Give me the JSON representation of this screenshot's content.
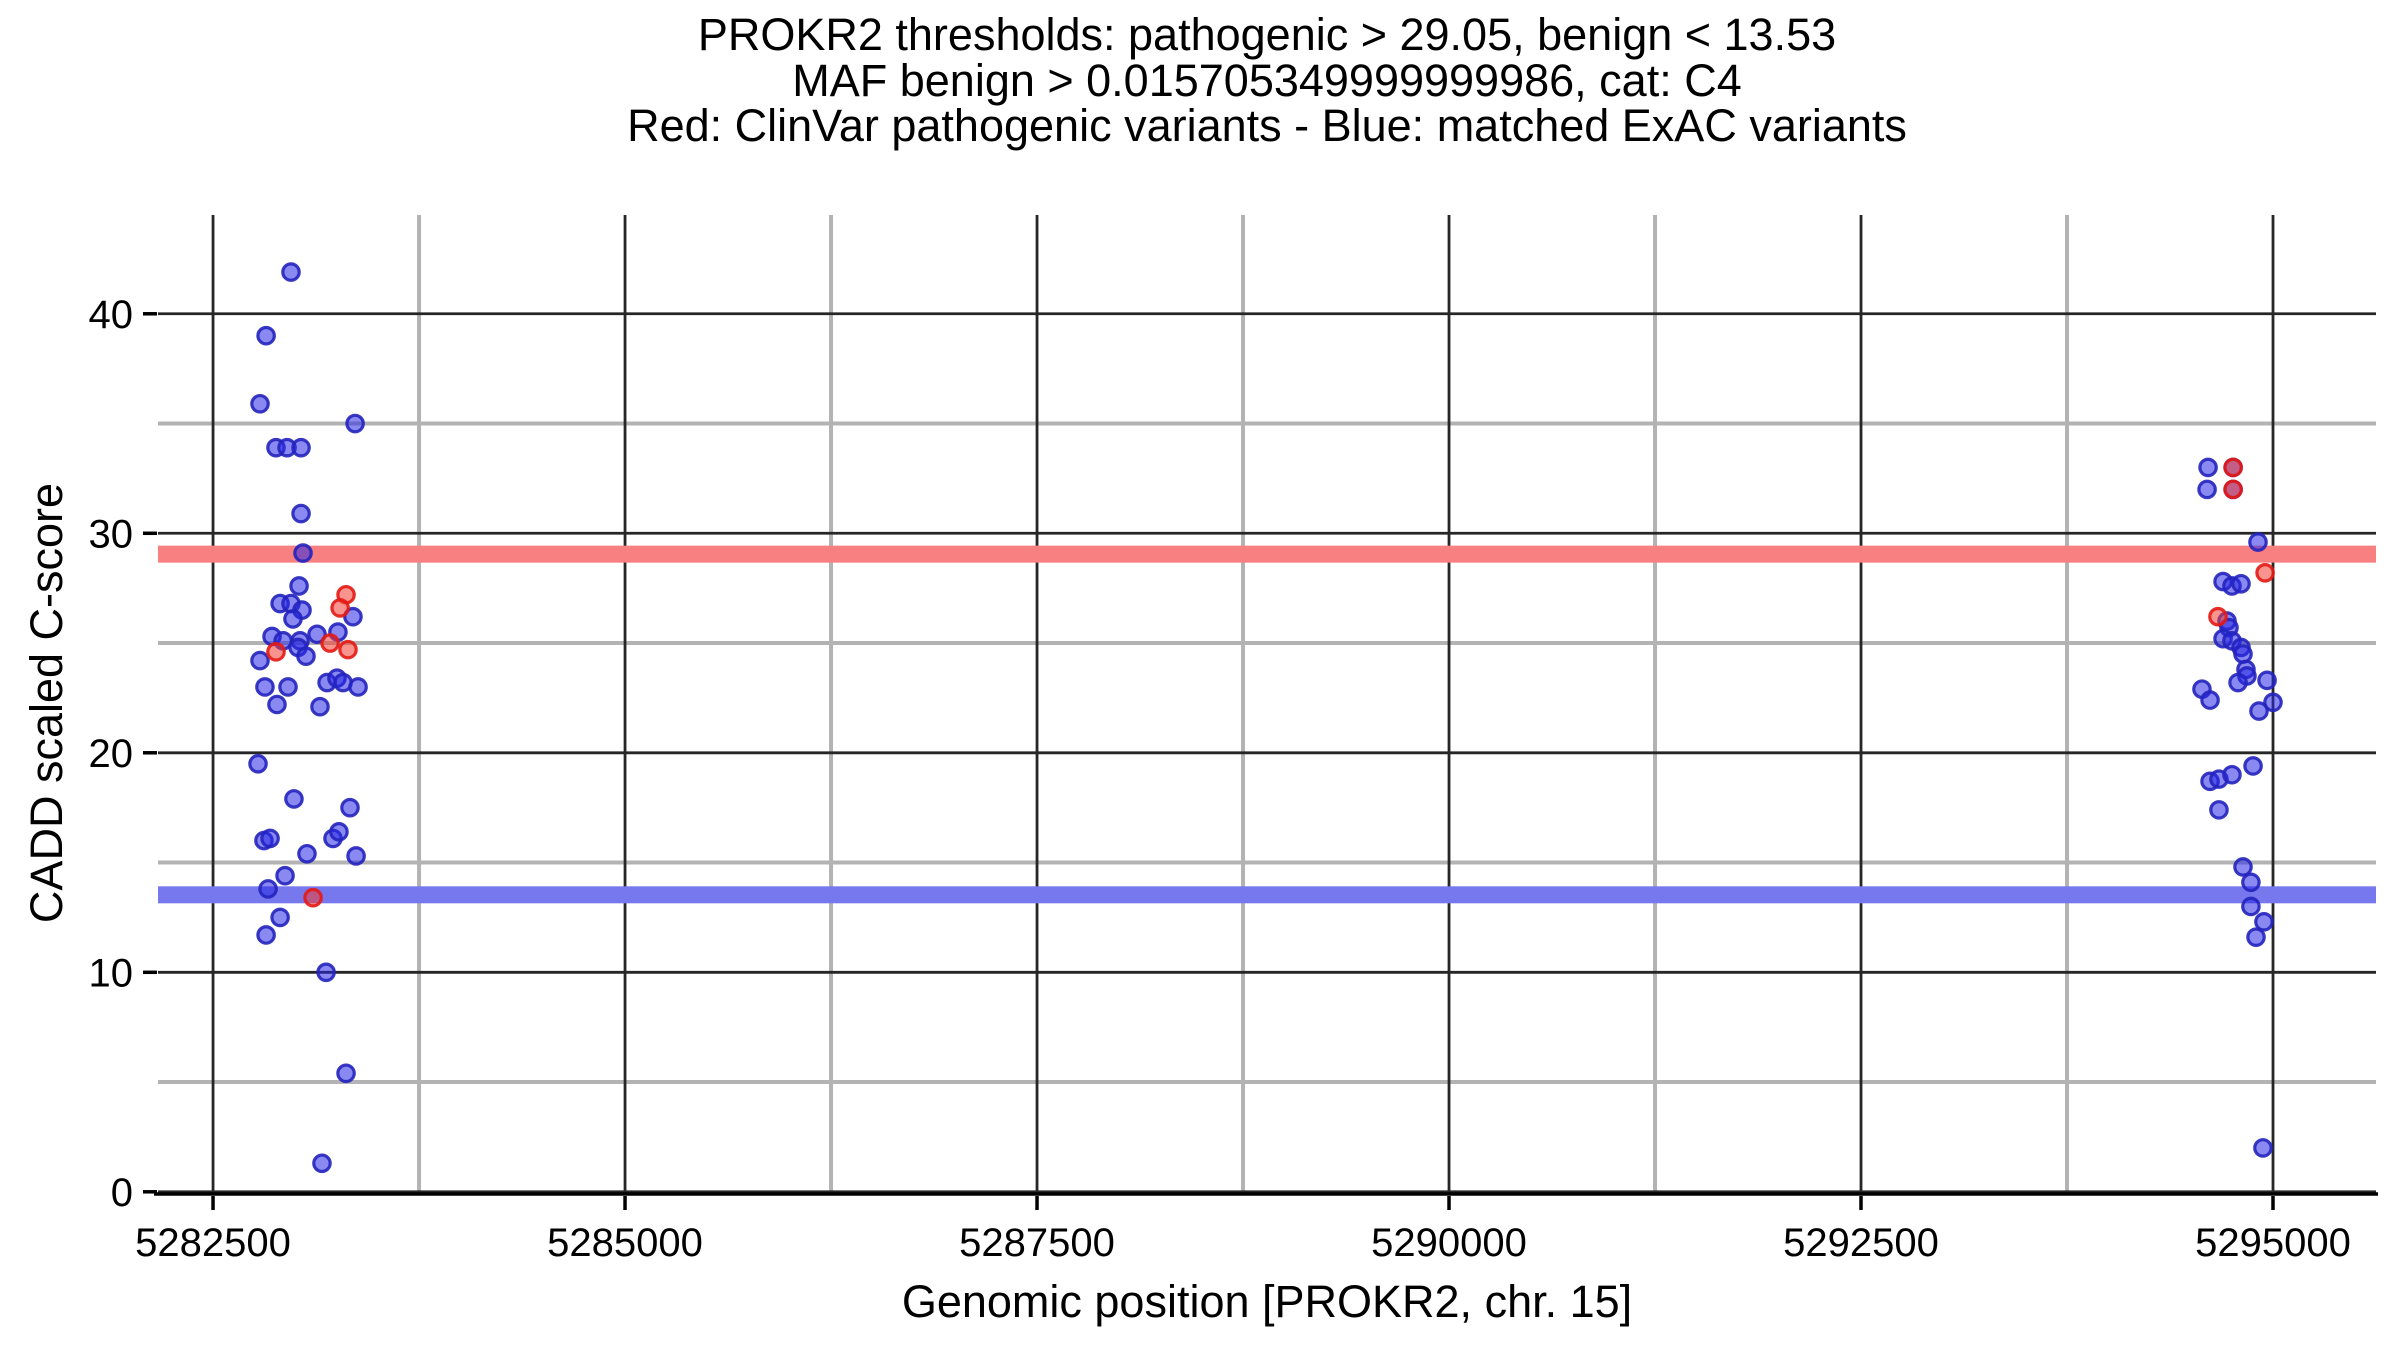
{
  "title": {
    "line1": "PROKR2 thresholds: pathogenic > 29.05, benign < 13.53",
    "line2": "MAF benign > 0.015705349999999986, cat: C4",
    "line3": "Red: ClinVar pathogenic variants - Blue: matched ExAC variants"
  },
  "thresholds": {
    "pathogenic_gt": 29.05,
    "benign_lt": 13.53,
    "maf_benign_gt": "0.015705349999999986",
    "category": "C4"
  },
  "colors": {
    "blue_fill": "rgba(40,40,230,0.55)",
    "blue_stroke": "rgba(35,35,190,0.9)",
    "red_fill": "rgba(242,58,48,0.55)",
    "red_stroke": "rgba(228,26,20,0.9)",
    "band_red": "#f98080",
    "band_blue": "#7878ee",
    "grid_major": "#262626",
    "grid_minor": "#b3b3b3",
    "axis": "#000000",
    "text": "#000000"
  },
  "chart_data": {
    "type": "scatter",
    "title": "PROKR2 thresholds: pathogenic > 29.05, benign < 13.53\nMAF benign > 0.015705349999999986, cat: C4\nRed: ClinVar pathogenic variants - Blue: matched ExAC variants",
    "xlabel": "Genomic position [PROKR2, chr. 15]",
    "ylabel": "CADD scaled C-score",
    "xlim": [
      5282166,
      5295625
    ],
    "ylim": [
      -0.1,
      44.5
    ],
    "x_ticks": [
      5282500,
      5285000,
      5287500,
      5290000,
      5292500,
      5295000
    ],
    "y_ticks": [
      0,
      10,
      20,
      30,
      40
    ],
    "x_minor": [
      5283750,
      5286250,
      5288750,
      5291250,
      5293750
    ],
    "y_minor": [
      5,
      15,
      25,
      35
    ],
    "grid": "major dark gray, minor light gray, no panel border, bottom axis line only",
    "legend_position": "none (encoded in title line 3)",
    "hlines": [
      {
        "y": 29.05,
        "color_key": "band_red",
        "meaning": "pathogenic threshold band"
      },
      {
        "y": 13.53,
        "color_key": "band_blue",
        "meaning": "benign threshold band"
      }
    ],
    "series": [
      {
        "name": "matched ExAC variants",
        "color": "blue",
        "points": [
          [
            5282973,
            41.9
          ],
          [
            5282822,
            39.0
          ],
          [
            5282785,
            35.9
          ],
          [
            5283362,
            35.0
          ],
          [
            5282882,
            33.9
          ],
          [
            5282949,
            33.9
          ],
          [
            5283034,
            33.9
          ],
          [
            5283034,
            30.9
          ],
          [
            5283046,
            29.1
          ],
          [
            5283022,
            27.6
          ],
          [
            5282907,
            26.8
          ],
          [
            5282973,
            26.8
          ],
          [
            5283040,
            26.5
          ],
          [
            5282985,
            26.1
          ],
          [
            5283349,
            26.2
          ],
          [
            5282858,
            25.3
          ],
          [
            5282925,
            25.1
          ],
          [
            5283028,
            25.1
          ],
          [
            5283131,
            25.4
          ],
          [
            5283258,
            25.5
          ],
          [
            5283016,
            24.8
          ],
          [
            5283064,
            24.4
          ],
          [
            5282785,
            24.2
          ],
          [
            5282815,
            23.0
          ],
          [
            5282955,
            23.0
          ],
          [
            5283192,
            23.2
          ],
          [
            5283252,
            23.4
          ],
          [
            5283289,
            23.2
          ],
          [
            5283380,
            23.0
          ],
          [
            5282888,
            22.2
          ],
          [
            5283149,
            22.1
          ],
          [
            5282773,
            19.5
          ],
          [
            5282991,
            17.9
          ],
          [
            5283331,
            17.5
          ],
          [
            5282809,
            16.0
          ],
          [
            5282846,
            16.1
          ],
          [
            5283070,
            15.4
          ],
          [
            5283228,
            16.1
          ],
          [
            5283264,
            16.4
          ],
          [
            5283368,
            15.3
          ],
          [
            5282937,
            14.4
          ],
          [
            5282834,
            13.8
          ],
          [
            5282907,
            12.5
          ],
          [
            5282822,
            11.7
          ],
          [
            5283186,
            10.0
          ],
          [
            5283307,
            5.4
          ],
          [
            5283161,
            1.3
          ],
          [
            5294606,
            33.0
          ],
          [
            5294758,
            33.0
          ],
          [
            5294600,
            32.0
          ],
          [
            5294758,
            32.0
          ],
          [
            5294909,
            29.6
          ],
          [
            5294697,
            27.8
          ],
          [
            5294751,
            27.6
          ],
          [
            5294806,
            27.7
          ],
          [
            5294721,
            26.0
          ],
          [
            5294733,
            25.7
          ],
          [
            5294697,
            25.2
          ],
          [
            5294751,
            25.1
          ],
          [
            5294806,
            24.8
          ],
          [
            5294818,
            24.5
          ],
          [
            5294836,
            23.8
          ],
          [
            5294842,
            23.5
          ],
          [
            5294788,
            23.2
          ],
          [
            5294964,
            23.3
          ],
          [
            5294569,
            22.9
          ],
          [
            5294618,
            22.4
          ],
          [
            5295000,
            22.3
          ],
          [
            5294915,
            21.9
          ],
          [
            5294879,
            19.4
          ],
          [
            5294618,
            18.7
          ],
          [
            5294672,
            18.8
          ],
          [
            5294751,
            19.0
          ],
          [
            5294672,
            17.4
          ],
          [
            5294818,
            14.8
          ],
          [
            5294866,
            14.1
          ],
          [
            5294866,
            13.0
          ],
          [
            5294945,
            12.3
          ],
          [
            5294897,
            11.6
          ],
          [
            5294939,
            2.0
          ]
        ]
      },
      {
        "name": "ClinVar pathogenic variants",
        "color": "red",
        "points": [
          [
            5283307,
            27.2
          ],
          [
            5283271,
            26.6
          ],
          [
            5282882,
            24.6
          ],
          [
            5283210,
            25.0
          ],
          [
            5283319,
            24.7
          ],
          [
            5283107,
            13.4
          ],
          [
            5294758,
            33.0
          ],
          [
            5294758,
            32.0
          ],
          [
            5294952,
            28.2
          ],
          [
            5294666,
            26.2
          ]
        ]
      }
    ]
  }
}
